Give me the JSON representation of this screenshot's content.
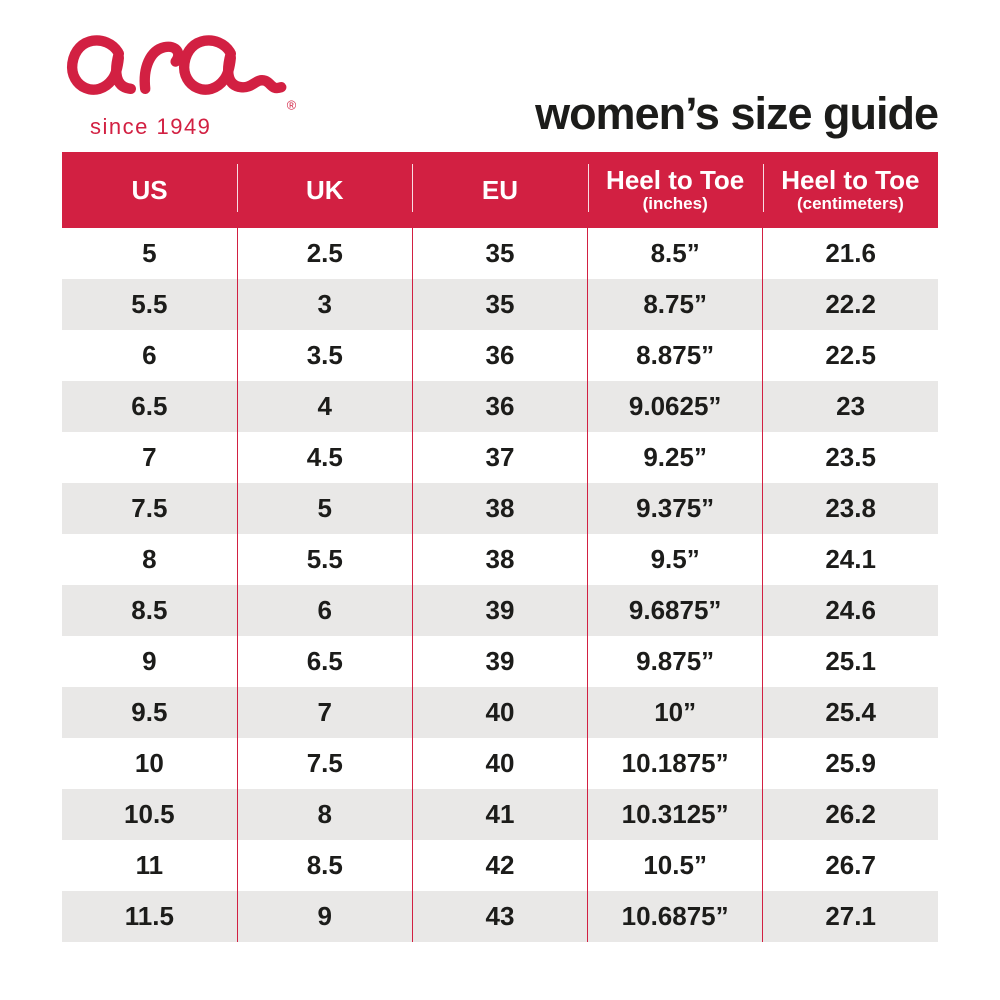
{
  "brand": {
    "logo_text": "ara",
    "tagline": "since 1949",
    "registered_mark": "®",
    "brand_red": "#D22042"
  },
  "page": {
    "title": "women’s size guide",
    "background": "#FFFFFF",
    "text_color": "#1C1C1A",
    "row_alt_color": "#E9E8E7"
  },
  "chart_data": {
    "type": "table",
    "title": "women’s size guide",
    "legend_position": "none",
    "grid": "alternating-row-shading with thin red column separators",
    "columns": [
      {
        "label": "US",
        "sub": ""
      },
      {
        "label": "UK",
        "sub": ""
      },
      {
        "label": "EU",
        "sub": ""
      },
      {
        "label": "Heel to Toe",
        "sub": "(inches)"
      },
      {
        "label": "Heel to Toe",
        "sub": "(centimeters)"
      }
    ],
    "rows": [
      [
        "5",
        "2.5",
        "35",
        "8.5”",
        "21.6"
      ],
      [
        "5.5",
        "3",
        "35",
        "8.75”",
        "22.2"
      ],
      [
        "6",
        "3.5",
        "36",
        "8.875”",
        "22.5"
      ],
      [
        "6.5",
        "4",
        "36",
        "9.0625”",
        "23"
      ],
      [
        "7",
        "4.5",
        "37",
        "9.25”",
        "23.5"
      ],
      [
        "7.5",
        "5",
        "38",
        "9.375”",
        "23.8"
      ],
      [
        "8",
        "5.5",
        "38",
        "9.5”",
        "24.1"
      ],
      [
        "8.5",
        "6",
        "39",
        "9.6875”",
        "24.6"
      ],
      [
        "9",
        "6.5",
        "39",
        "9.875”",
        "25.1"
      ],
      [
        "9.5",
        "7",
        "40",
        "10”",
        "25.4"
      ],
      [
        "10",
        "7.5",
        "40",
        "10.1875”",
        "25.9"
      ],
      [
        "10.5",
        "8",
        "41",
        "10.3125”",
        "26.2"
      ],
      [
        "11",
        "8.5",
        "42",
        "10.5”",
        "26.7"
      ],
      [
        "11.5",
        "9",
        "43",
        "10.6875”",
        "27.1"
      ]
    ]
  }
}
